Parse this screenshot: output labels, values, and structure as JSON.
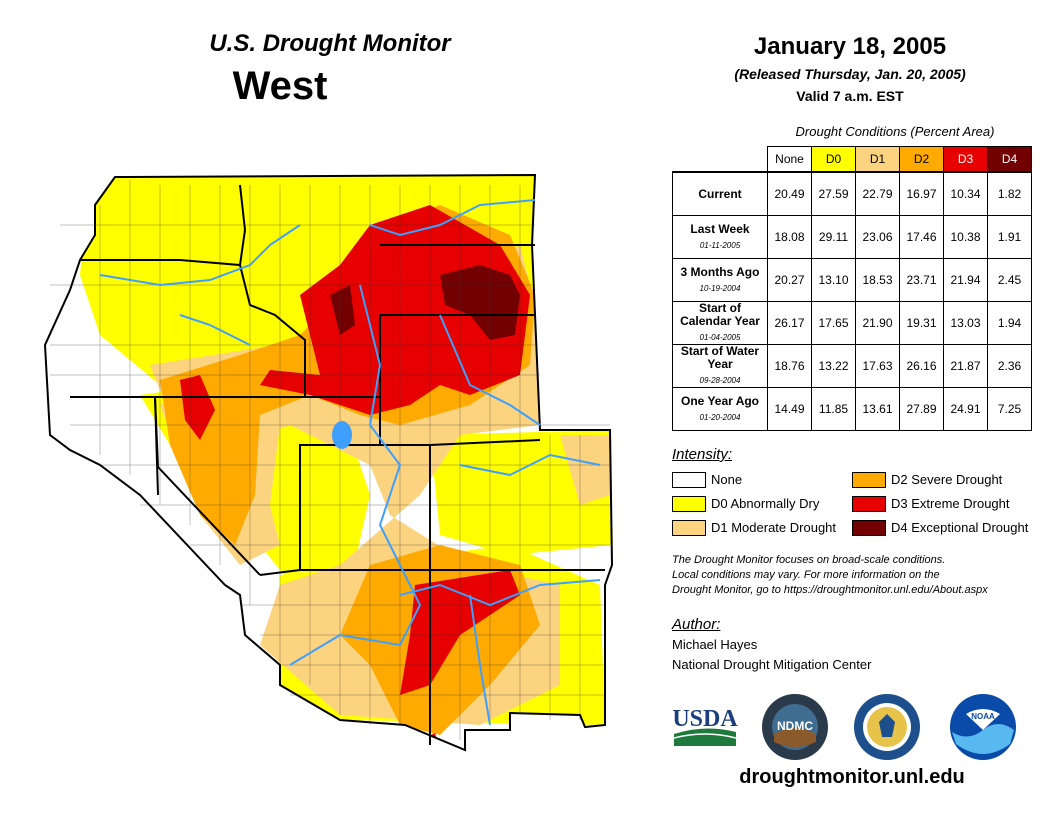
{
  "header": {
    "title": "U.S. Drought Monitor",
    "region": "West",
    "date": "January 18, 2005",
    "released": "(Released Thursday, Jan. 20, 2005)",
    "valid": "Valid 7 a.m. EST"
  },
  "table": {
    "caption": "Drought Conditions (Percent Area)",
    "columns": [
      "None",
      "D0",
      "D1",
      "D2",
      "D3",
      "D4"
    ],
    "rows": [
      {
        "label": "Current",
        "sub": "",
        "values": [
          "20.49",
          "27.59",
          "22.79",
          "16.97",
          "10.34",
          "1.82"
        ]
      },
      {
        "label": "Last Week",
        "sub": "01-11-2005",
        "values": [
          "18.08",
          "29.11",
          "23.06",
          "17.46",
          "10.38",
          "1.91"
        ]
      },
      {
        "label": "3 Months Ago",
        "sub": "10-19-2004",
        "values": [
          "20.27",
          "13.10",
          "18.53",
          "23.71",
          "21.94",
          "2.45"
        ]
      },
      {
        "label": "Start of Calendar Year",
        "sub": "01-04-2005",
        "values": [
          "26.17",
          "17.65",
          "21.90",
          "19.31",
          "13.03",
          "1.94"
        ]
      },
      {
        "label": "Start of Water Year",
        "sub": "09-28-2004",
        "values": [
          "18.76",
          "13.22",
          "17.63",
          "26.16",
          "21.87",
          "2.36"
        ]
      },
      {
        "label": "One Year Ago",
        "sub": "01-20-2004",
        "values": [
          "14.49",
          "11.85",
          "13.61",
          "27.89",
          "24.91",
          "7.25"
        ]
      }
    ]
  },
  "legend": {
    "title": "Intensity:",
    "items": [
      {
        "label": "None",
        "color": "#ffffff"
      },
      {
        "label": "D0 Abnormally Dry",
        "color": "#ffff00"
      },
      {
        "label": "D1 Moderate Drought",
        "color": "#fcd37f"
      },
      {
        "label": "D2 Severe Drought",
        "color": "#ffaa00"
      },
      {
        "label": "D3 Extreme Drought",
        "color": "#e60000"
      },
      {
        "label": "D4 Exceptional Drought",
        "color": "#730000"
      }
    ]
  },
  "note": {
    "line1": "The Drought Monitor focuses on broad-scale conditions.",
    "line2": "Local conditions may vary. For more information on the",
    "line3": "Drought Monitor, go to https://droughtmonitor.unl.edu/About.aspx"
  },
  "author": {
    "title": "Author:",
    "name": "Michael Hayes",
    "org": "National Drought Mitigation Center"
  },
  "logos": {
    "usda": "USDA",
    "ndmc": "NDMC",
    "noaa": "NOAA"
  },
  "footer": {
    "url": "droughtmonitor.unl.edu"
  }
}
